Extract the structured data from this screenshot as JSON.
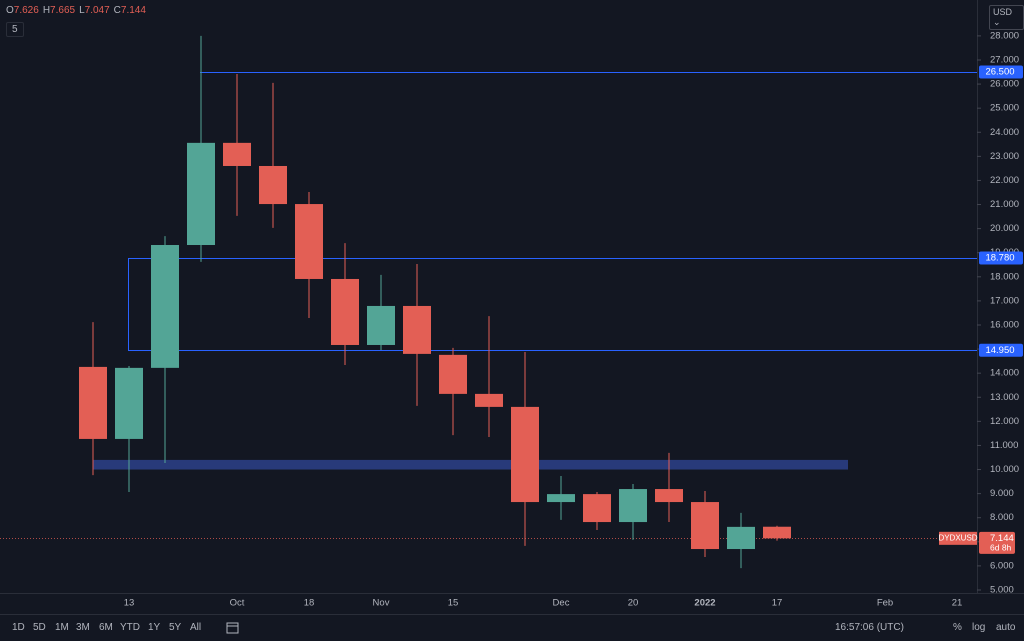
{
  "header": {
    "ohlc": [
      {
        "letter": "O",
        "value": "7.626"
      },
      {
        "letter": "H",
        "value": "7.665"
      },
      {
        "letter": "L",
        "value": "7.047"
      },
      {
        "letter": "C",
        "value": "7.144"
      }
    ],
    "indicator": "5",
    "currency": "USD"
  },
  "chart_data": {
    "type": "candlestick",
    "categories": [
      null,
      "13",
      null,
      null,
      "Oct",
      null,
      "18",
      null,
      "Nov",
      null,
      "15",
      null,
      null,
      "Dec",
      null,
      "20",
      null,
      "2022",
      null,
      "17",
      null,
      null,
      "Feb",
      null,
      "21"
    ],
    "open": [
      14.26,
      11.27,
      14.22,
      19.32,
      23.56,
      22.6,
      21.02,
      17.91,
      15.17,
      16.79,
      14.76,
      13.14,
      12.6,
      8.65,
      8.98,
      7.82,
      9.19,
      8.65,
      6.7,
      7.626,
      null,
      null,
      null,
      null,
      null
    ],
    "high": [
      16.12,
      14.3,
      19.69,
      28.0,
      26.42,
      26.05,
      21.52,
      19.4,
      18.08,
      18.53,
      15.05,
      16.37,
      14.88,
      9.73,
      9.07,
      9.4,
      10.69,
      9.11,
      8.2,
      7.665,
      null,
      null,
      null,
      null,
      null
    ],
    "low": [
      9.77,
      9.07,
      10.27,
      18.62,
      20.53,
      20.03,
      16.29,
      14.34,
      14.96,
      12.64,
      11.43,
      11.35,
      6.83,
      7.91,
      7.49,
      7.08,
      7.82,
      6.37,
      5.91,
      7.047,
      null,
      null,
      null,
      null,
      null
    ],
    "close": [
      11.27,
      14.22,
      19.32,
      23.56,
      22.6,
      21.02,
      17.91,
      15.17,
      16.79,
      14.8,
      13.14,
      12.6,
      8.65,
      8.98,
      7.82,
      9.19,
      8.65,
      6.7,
      7.62,
      7.144,
      null,
      null,
      null,
      null,
      null
    ],
    "up_color": "#53a596",
    "down_color": "#e35f55",
    "ylim": [
      4.875,
      29.49
    ],
    "yticks": [
      {
        "value": 5,
        "label": "5.000"
      },
      {
        "value": 6,
        "label": "6.000"
      },
      {
        "value": 7,
        "label": "7.000"
      },
      {
        "value": 8,
        "label": "8.000"
      },
      {
        "value": 9,
        "label": "9.000"
      },
      {
        "value": 10,
        "label": "10.000"
      },
      {
        "value": 11,
        "label": "11.000"
      },
      {
        "value": 12,
        "label": "12.000"
      },
      {
        "value": 13,
        "label": "13.000"
      },
      {
        "value": 14,
        "label": "14.000"
      },
      {
        "value": 15,
        "label": "15.000"
      },
      {
        "value": 16,
        "label": "16.000"
      },
      {
        "value": 17,
        "label": "17.000"
      },
      {
        "value": 18,
        "label": "18.000"
      },
      {
        "value": 19,
        "label": "19.000"
      },
      {
        "value": 20,
        "label": "20.000"
      },
      {
        "value": 21,
        "label": "21.000"
      },
      {
        "value": 22,
        "label": "22.000"
      },
      {
        "value": 23,
        "label": "23.000"
      },
      {
        "value": 24,
        "label": "24.000"
      },
      {
        "value": 25,
        "label": "25.000"
      },
      {
        "value": 26,
        "label": "26.000"
      },
      {
        "value": 27,
        "label": "27.000"
      },
      {
        "value": 28,
        "label": "28.000"
      }
    ],
    "levels": [
      {
        "value": 26.5,
        "label": "26.500"
      },
      {
        "value": 18.78,
        "label": "18.780"
      },
      {
        "value": 14.95,
        "label": "14.950"
      }
    ],
    "level_color": "#2962ff",
    "zone": {
      "low": 10.0,
      "high": 10.4,
      "color": "#283a7a"
    },
    "last_price": {
      "value": 7.144,
      "label": "7.144",
      "symbol": "DYDXUSD",
      "countdown": "6d 8h"
    }
  },
  "toolbar": {
    "ranges": [
      "1D",
      "5D",
      "1M",
      "3M",
      "6M",
      "YTD",
      "1Y",
      "5Y",
      "All"
    ],
    "clock": "16:57:06 (UTC)",
    "percent": "%",
    "log": "log",
    "auto": "auto"
  }
}
